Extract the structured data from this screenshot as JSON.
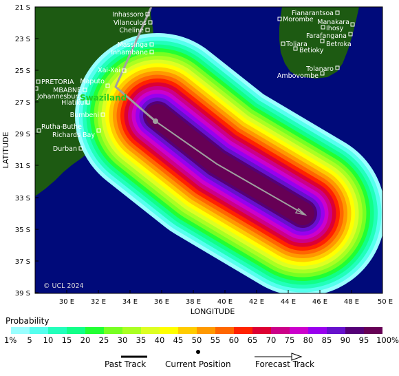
{
  "map": {
    "y_axis_title": "LATITUDE",
    "x_axis_title": "LONGITUDE",
    "copyright": "© UCL 2024",
    "lat_ticks": [
      "21 S",
      "23 S",
      "25 S",
      "27 S",
      "29 S",
      "31 S",
      "33 S",
      "35 S",
      "37 S",
      "39 S"
    ],
    "lon_ticks": [
      "30 E",
      "32 E",
      "34 E",
      "36 E",
      "38 E",
      "40 E",
      "42 E",
      "44 E",
      "46 E",
      "48 E",
      "50 E"
    ],
    "country_label": "Swaziland",
    "colors": {
      "ocean": "#000a7a",
      "land": "#1d5a12",
      "track": "#a0a0a0",
      "country_label": "#22cc22"
    },
    "cities": [
      {
        "name": "Inhassoro"
      },
      {
        "name": "Vilanculos"
      },
      {
        "name": "Cheline"
      },
      {
        "name": "Massinga"
      },
      {
        "name": "Inhambane"
      },
      {
        "name": "Xai-Xai"
      },
      {
        "name": "Maputo"
      },
      {
        "name": "PRETORIA"
      },
      {
        "name": "MBABNE"
      },
      {
        "name": "Johannesburg"
      },
      {
        "name": "Hlatikulu"
      },
      {
        "name": "Bumbeni"
      },
      {
        "name": "Rutha-Buthe"
      },
      {
        "name": "Richards Bay"
      },
      {
        "name": "Durban"
      },
      {
        "name": "Fianarantsoa"
      },
      {
        "name": "Morombe"
      },
      {
        "name": "Manakara"
      },
      {
        "name": "Ihosy"
      },
      {
        "name": "Farafangana"
      },
      {
        "name": "Toliara"
      },
      {
        "name": "Betroka"
      },
      {
        "name": "Betioky"
      },
      {
        "name": "Tolanaro"
      },
      {
        "name": "Ambovombe"
      }
    ]
  },
  "legend": {
    "title": "Probability",
    "labels": [
      "1%",
      "5",
      "10",
      "15",
      "20",
      "25",
      "30",
      "35",
      "40",
      "45",
      "50",
      "55",
      "60",
      "65",
      "70",
      "75",
      "80",
      "85",
      "90",
      "95",
      "100%"
    ],
    "colors": [
      "#99ffff",
      "#55ffee",
      "#22ffbb",
      "#11ff88",
      "#22ff33",
      "#77ff22",
      "#aaff22",
      "#ddff22",
      "#ffff00",
      "#ffcc00",
      "#ff9900",
      "#ff6600",
      "#ff2200",
      "#dd0033",
      "#cc0088",
      "#cc00cc",
      "#9900ee",
      "#6611cc",
      "#550077",
      "#660055"
    ]
  },
  "key": {
    "past_track": "Past Track",
    "current_position": "Current Position",
    "forecast_track": "Forecast Track"
  }
}
